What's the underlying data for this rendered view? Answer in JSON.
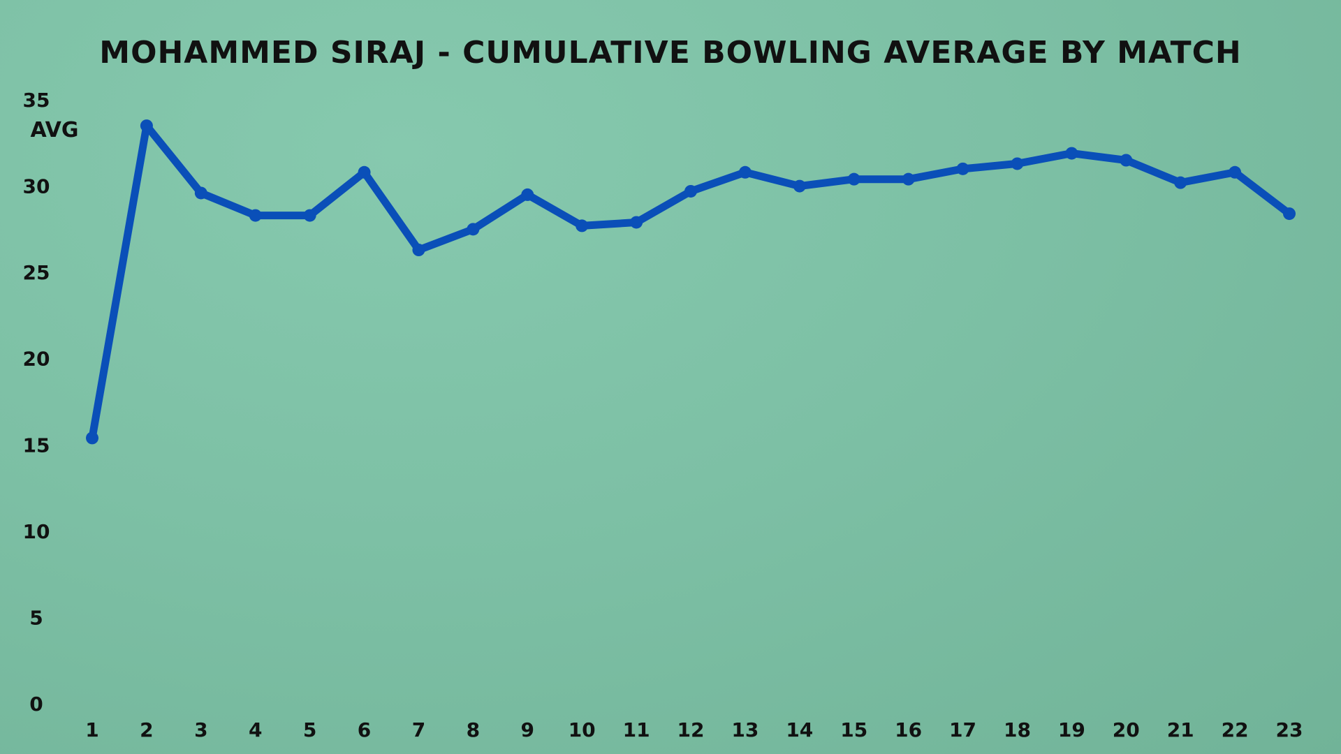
{
  "chart_data": {
    "type": "line",
    "title": "MOHAMMED SIRAJ - CUMULATIVE BOWLING AVERAGE BY MATCH",
    "xlabel": "",
    "ylabel": "AVG",
    "x": [
      1,
      2,
      3,
      4,
      5,
      6,
      7,
      8,
      9,
      10,
      11,
      12,
      13,
      14,
      15,
      16,
      17,
      18,
      19,
      20,
      21,
      22,
      23
    ],
    "series": [
      {
        "values": [
          15.4,
          33.5,
          29.6,
          28.3,
          28.3,
          30.8,
          26.3,
          27.5,
          29.5,
          27.7,
          27.9,
          29.7,
          30.8,
          30.0,
          30.4,
          30.4,
          31.0,
          31.3,
          31.9,
          31.5,
          30.2,
          30.8,
          28.4
        ],
        "color": "#0a4fb8"
      }
    ],
    "yticks": [
      0,
      5,
      10,
      15,
      20,
      25,
      30,
      35
    ],
    "ylim": [
      0,
      35
    ],
    "grid": false,
    "legend": "none"
  }
}
